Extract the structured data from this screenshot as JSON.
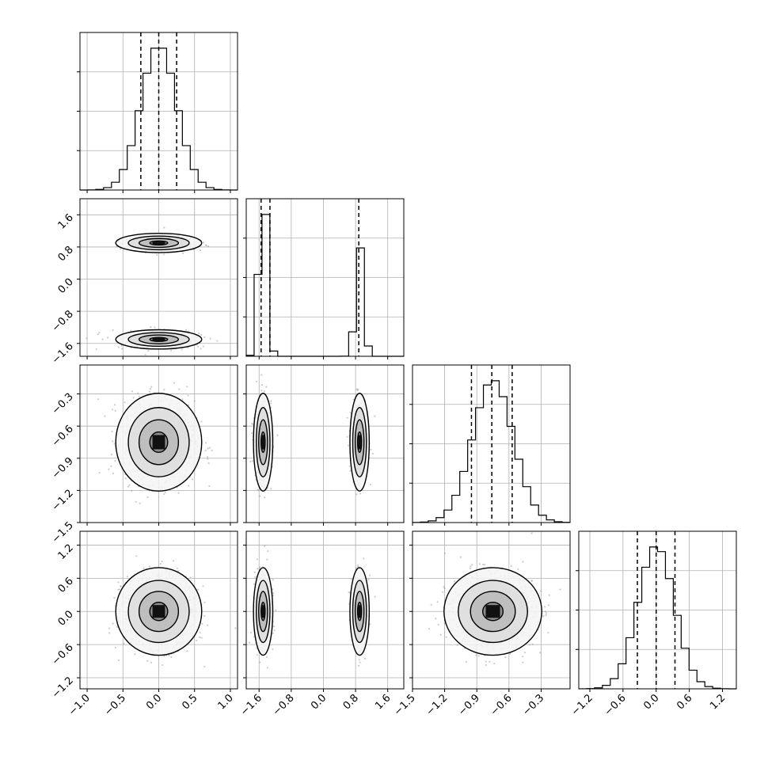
{
  "chart_data": {
    "type": "corner",
    "title": "",
    "grid": true,
    "colors": {
      "line": "#000000",
      "grid": "#b0b0b0",
      "scatter": "#9a9a9a"
    },
    "params": [
      {
        "range": [
          -1.1,
          1.1
        ],
        "ticks": [
          "-1.0",
          "-0.5",
          "0.0",
          "0.5",
          "1.0"
        ],
        "tick_values": [
          -1.0,
          -0.5,
          0.0,
          0.5,
          1.0
        ],
        "mean": 0.0,
        "sd": 0.25,
        "quantiles": [
          -0.25,
          0.0,
          0.25
        ]
      },
      {
        "range": [
          -1.92,
          2.0
        ],
        "ticks": [
          "-1.6",
          "-0.8",
          "0.0",
          "0.8",
          "1.6"
        ],
        "tick_values": [
          -1.6,
          -0.8,
          0.0,
          0.8,
          1.6
        ],
        "modes": [
          {
            "mean": -1.5,
            "sd": 0.1,
            "weight": 0.62
          },
          {
            "mean": 0.9,
            "sd": 0.1,
            "weight": 0.38
          }
        ],
        "quantiles": [
          -1.55,
          -1.33,
          0.88
        ]
      },
      {
        "range": [
          -1.5,
          -0.03
        ],
        "ticks": [
          "-1.5",
          "-1.2",
          "-0.9",
          "-0.6",
          "-0.3"
        ],
        "tick_values": [
          -1.5,
          -1.2,
          -0.9,
          -0.6,
          -0.3
        ],
        "mean": -0.75,
        "sd": 0.19,
        "quantiles": [
          -0.95,
          -0.76,
          -0.57
        ]
      },
      {
        "range": [
          -1.4,
          1.45
        ],
        "ticks": [
          "-1.2",
          "-0.6",
          "0.0",
          "0.6",
          "1.2"
        ],
        "tick_values": [
          -1.2,
          -0.6,
          0.0,
          0.6,
          1.2
        ],
        "mean": 0.0,
        "sd": 0.33,
        "quantiles": [
          -0.34,
          0.0,
          0.34
        ]
      }
    ]
  }
}
